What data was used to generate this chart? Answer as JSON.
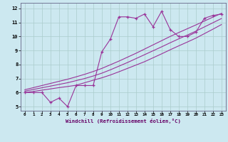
{
  "title": "",
  "xlabel": "Windchill (Refroidissement éolien,°C)",
  "background_color": "#cce8f0",
  "grid_color": "#aacccc",
  "line_color": "#993399",
  "x_ticks": [
    0,
    1,
    2,
    3,
    4,
    5,
    6,
    7,
    8,
    9,
    10,
    11,
    12,
    13,
    14,
    15,
    16,
    17,
    18,
    19,
    20,
    21,
    22,
    23
  ],
  "y_ticks": [
    5,
    6,
    7,
    8,
    9,
    10,
    11,
    12
  ],
  "ylim": [
    4.7,
    12.4
  ],
  "xlim": [
    -0.5,
    23.5
  ],
  "series1_x": [
    0,
    1,
    2,
    3,
    4,
    5,
    6,
    7,
    8,
    9,
    10,
    11,
    12,
    13,
    14,
    15,
    16,
    17,
    18,
    19,
    20,
    21,
    22,
    23
  ],
  "series1_y": [
    6.0,
    6.0,
    6.0,
    5.3,
    5.6,
    5.0,
    6.5,
    6.5,
    6.5,
    8.9,
    9.8,
    11.4,
    11.4,
    11.3,
    11.6,
    10.7,
    11.8,
    10.5,
    10.0,
    10.0,
    10.3,
    11.3,
    11.5,
    11.6
  ],
  "series2_x": [
    0,
    1,
    2,
    3,
    4,
    5,
    6,
    7,
    8,
    9,
    10,
    11,
    12,
    13,
    14,
    15,
    16,
    17,
    18,
    19,
    20,
    21,
    22,
    23
  ],
  "series2_y": [
    6.0,
    6.08,
    6.17,
    6.26,
    6.35,
    6.43,
    6.52,
    6.7,
    6.88,
    7.05,
    7.25,
    7.48,
    7.72,
    7.96,
    8.2,
    8.48,
    8.76,
    9.05,
    9.33,
    9.6,
    9.88,
    10.2,
    10.52,
    10.85
  ],
  "series3_x": [
    0,
    1,
    2,
    3,
    4,
    5,
    6,
    7,
    8,
    9,
    10,
    11,
    12,
    13,
    14,
    15,
    16,
    17,
    18,
    19,
    20,
    21,
    22,
    23
  ],
  "series3_y": [
    6.1,
    6.22,
    6.34,
    6.46,
    6.58,
    6.7,
    6.85,
    7.0,
    7.18,
    7.38,
    7.62,
    7.88,
    8.14,
    8.42,
    8.7,
    8.98,
    9.26,
    9.55,
    9.83,
    10.1,
    10.38,
    10.68,
    10.98,
    11.28
  ],
  "series4_x": [
    0,
    1,
    2,
    3,
    4,
    5,
    6,
    7,
    8,
    9,
    10,
    11,
    12,
    13,
    14,
    15,
    16,
    17,
    18,
    19,
    20,
    21,
    22,
    23
  ],
  "series4_y": [
    6.2,
    6.35,
    6.5,
    6.65,
    6.8,
    6.95,
    7.12,
    7.3,
    7.5,
    7.72,
    7.98,
    8.24,
    8.52,
    8.8,
    9.1,
    9.4,
    9.7,
    10.0,
    10.28,
    10.55,
    10.82,
    11.1,
    11.38,
    11.65
  ]
}
